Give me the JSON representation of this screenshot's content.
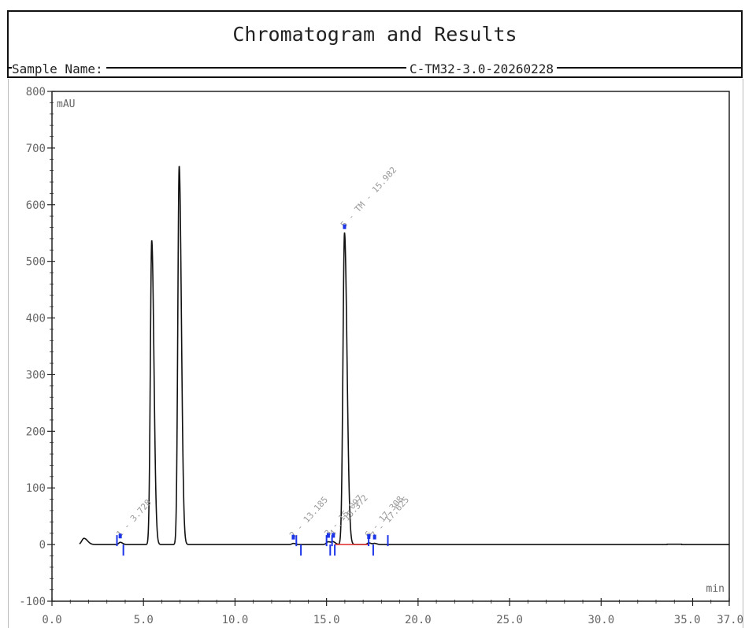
{
  "header": {
    "title": "Chromatogram and Results",
    "sample_label": "Sample Name:",
    "sample_value": "C-TM32-3.0-20260228"
  },
  "colors": {
    "trace": "#111111",
    "axis": "#222222",
    "tick_label": "#666666",
    "marker": "#1c34e8",
    "baseline": "#e23a3a",
    "peak_label": "#9a9a9a"
  },
  "chart_data": {
    "type": "line",
    "title": "",
    "xlabel": "min",
    "ylabel": "mAU",
    "xlim": [
      0,
      37
    ],
    "ylim": [
      -100,
      800
    ],
    "grid": false,
    "x_tick_labels": [
      "0.0",
      "5.0",
      "10.0",
      "15.0",
      "20.0",
      "25.0",
      "30.0",
      "35.0",
      "37.0"
    ],
    "x_ticks": [
      0,
      5,
      10,
      15,
      20,
      25,
      30,
      35,
      37
    ],
    "y_tick_labels": [
      "800",
      "700",
      "600",
      "500",
      "400",
      "300",
      "200",
      "100",
      "0",
      "-100"
    ],
    "y_ticks": [
      800,
      700,
      600,
      500,
      400,
      300,
      200,
      100,
      0,
      -100
    ],
    "series": [
      {
        "peaks": [
          {
            "rt": 1.75,
            "height": 11,
            "width": 0.12
          },
          {
            "rt": 3.728,
            "height": 4,
            "width": 0.08
          },
          {
            "rt": 5.45,
            "height": 537,
            "width": 0.075
          },
          {
            "rt": 6.95,
            "height": 668,
            "width": 0.075
          },
          {
            "rt": 13.185,
            "height": 2,
            "width": 0.08
          },
          {
            "rt": 15.097,
            "height": 5,
            "width": 0.1
          },
          {
            "rt": 15.372,
            "height": 4,
            "width": 0.08
          },
          {
            "rt": 15.982,
            "height": 550,
            "width": 0.085
          },
          {
            "rt": 17.308,
            "height": 3,
            "width": 0.08
          },
          {
            "rt": 17.625,
            "height": 2,
            "width": 0.08
          }
        ]
      }
    ],
    "annotations": [
      {
        "rt": 3.728,
        "label": "1 - 3.728"
      },
      {
        "rt": 13.185,
        "label": "2 - 13.185"
      },
      {
        "rt": 15.097,
        "label": "3 - 15.097"
      },
      {
        "rt": 15.372,
        "label": "4 - 15.372"
      },
      {
        "rt": 15.982,
        "label": "5 - TM - 15.982"
      },
      {
        "rt": 17.308,
        "label": "6 - 17.308"
      },
      {
        "rt": 17.625,
        "label": "7 - 17.625"
      }
    ],
    "integration_marks": [
      3.55,
      3.9,
      13.35,
      13.6,
      15.0,
      15.2,
      15.3,
      15.45,
      17.3,
      17.55,
      18.35
    ],
    "integration_baseline": [
      [
        15.45,
        17.3
      ]
    ]
  }
}
